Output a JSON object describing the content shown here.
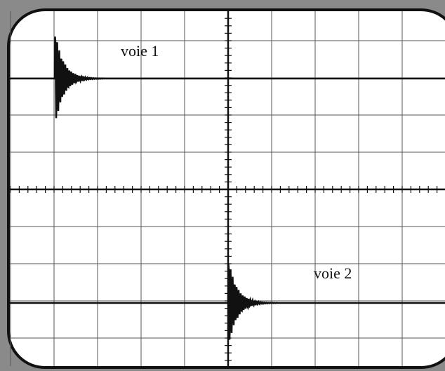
{
  "traces": [
    {
      "label": "voie 1"
    },
    {
      "label": "voie 2"
    }
  ]
}
